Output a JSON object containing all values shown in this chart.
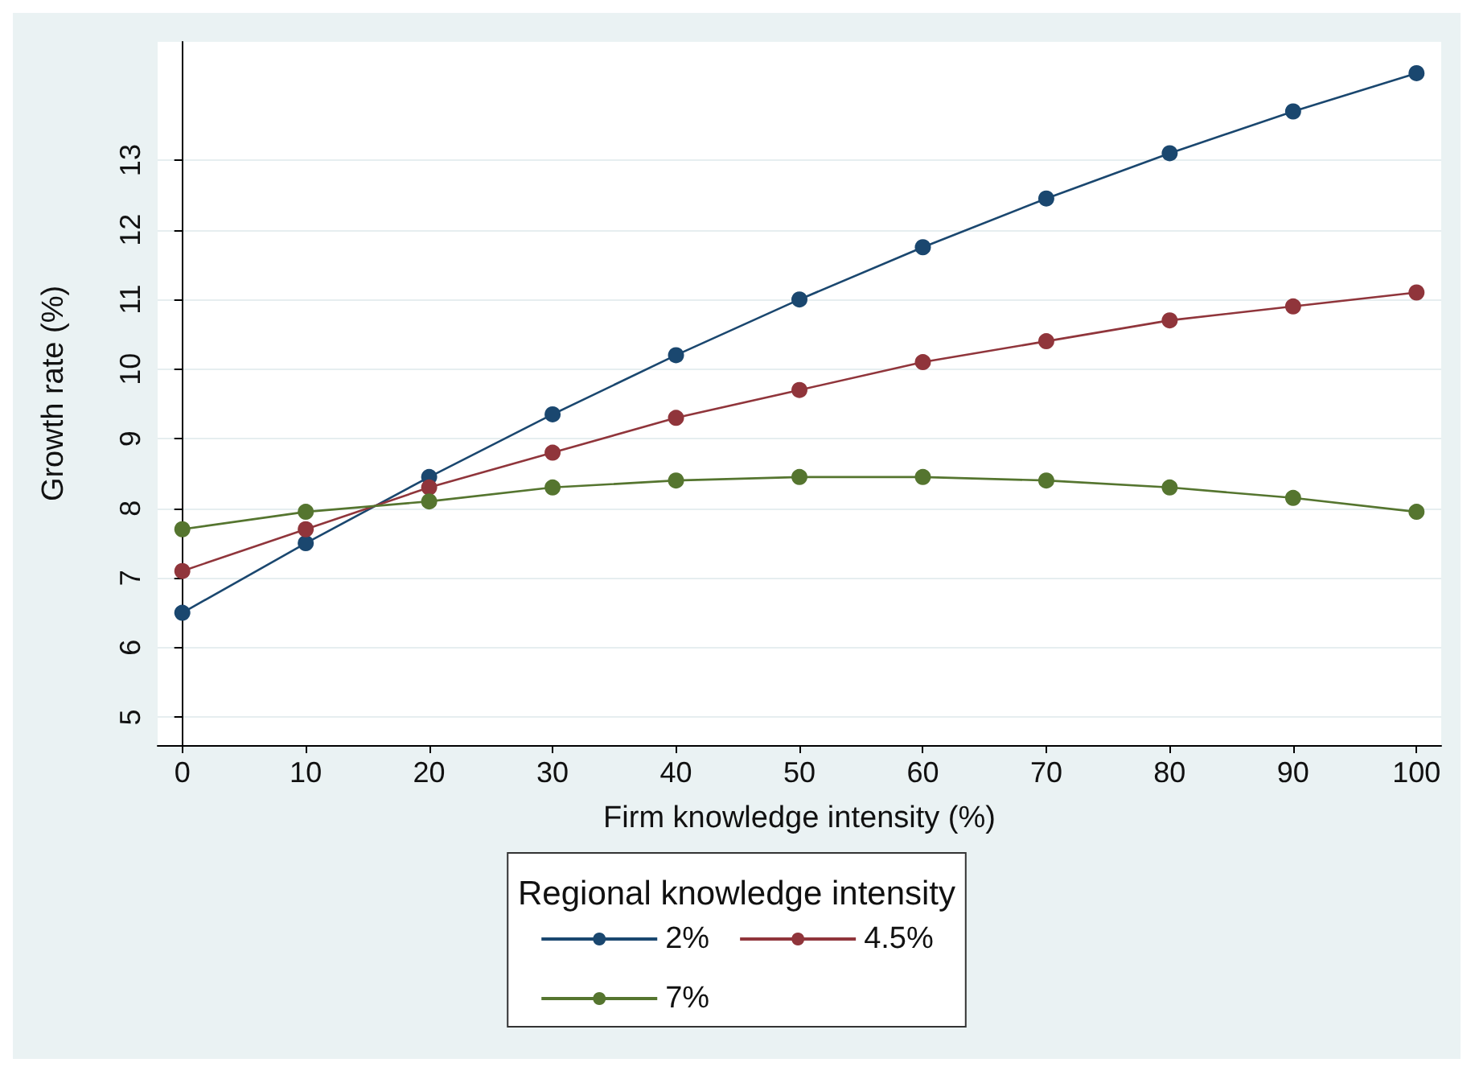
{
  "chart_data": {
    "type": "line",
    "xlabel": "Firm knowledge intensity (%)",
    "ylabel": "Growth rate (%)",
    "legend_title": "Regional knowledge intensity",
    "x": [
      0,
      10,
      20,
      30,
      40,
      50,
      60,
      70,
      80,
      90,
      100
    ],
    "series": [
      {
        "name": "2%",
        "color": "#1a476f",
        "values": [
          6.5,
          7.5,
          8.45,
          9.35,
          10.2,
          11.0,
          11.75,
          12.45,
          13.1,
          13.7,
          14.25
        ]
      },
      {
        "name": "4.5%",
        "color": "#90353b",
        "values": [
          7.1,
          7.7,
          8.3,
          8.8,
          9.3,
          9.7,
          10.1,
          10.4,
          10.7,
          10.9,
          11.1
        ]
      },
      {
        "name": "7%",
        "color": "#55752f",
        "values": [
          7.7,
          7.95,
          8.1,
          8.3,
          8.4,
          8.45,
          8.45,
          8.4,
          8.3,
          8.15,
          7.95
        ]
      }
    ],
    "xlim": [
      -2,
      102
    ],
    "xticks": [
      0,
      10,
      20,
      30,
      40,
      50,
      60,
      70,
      80,
      90,
      100
    ],
    "ylim": [
      4.6,
      14.7
    ],
    "yticks": [
      5,
      6,
      7,
      8,
      9,
      10,
      11,
      12,
      13
    ],
    "grid": "y",
    "legend": "bottom",
    "marker": "circle",
    "line_style": "solid"
  }
}
